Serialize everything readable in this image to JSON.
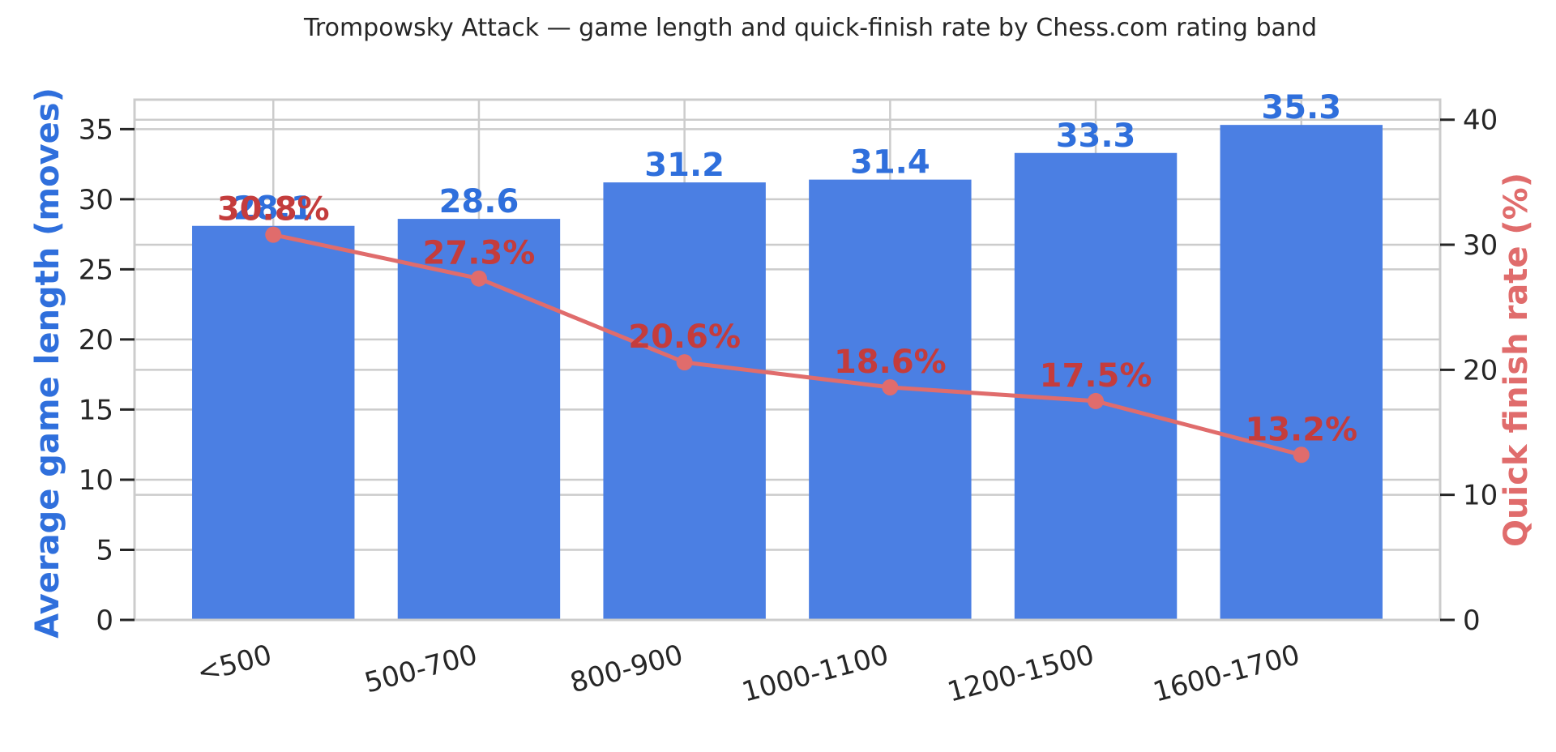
{
  "chart_data": {
    "type": "bar",
    "title": "Trompowsky Attack — game length and quick-finish rate by Chess.com rating band",
    "categories": [
      "<500",
      "500-700",
      "800-900",
      "1000-1100",
      "1200-1500",
      "1600-1700"
    ],
    "series": [
      {
        "name": "Average game length (moves)",
        "type": "bar",
        "axis": "left",
        "values": [
          28.1,
          28.6,
          31.2,
          31.4,
          33.3,
          35.3
        ],
        "labels": [
          "28.1",
          "28.6",
          "31.2",
          "31.4",
          "33.3",
          "35.3"
        ]
      },
      {
        "name": "Quick finish rate (%)",
        "type": "line",
        "axis": "right",
        "values": [
          30.8,
          27.3,
          20.6,
          18.6,
          17.5,
          13.2
        ],
        "labels": [
          "30.8%",
          "27.3%",
          "20.6%",
          "18.6%",
          "17.5%",
          "13.2%"
        ]
      }
    ],
    "ylabel_left": "Average game length (moves)",
    "ylabel_right": "Quick finish rate (%)",
    "ylim_left": [
      0,
      37.1
    ],
    "ylim_right": [
      0,
      41.6
    ],
    "yticks_left": [
      0,
      5,
      10,
      15,
      20,
      25,
      30,
      35
    ],
    "yticks_right": [
      0,
      10,
      20,
      30,
      40
    ],
    "grid": true,
    "colors": {
      "bar": "#4b7fe3",
      "bar_label": "#2f6fdc",
      "line": "#e06c6c",
      "line_label": "#c43c3c",
      "left_axis_label": "#2f6fdc",
      "right_axis_label": "#e06c6c",
      "grid": "#cccccc",
      "spine": "#cccccc",
      "text": "#262626"
    }
  }
}
